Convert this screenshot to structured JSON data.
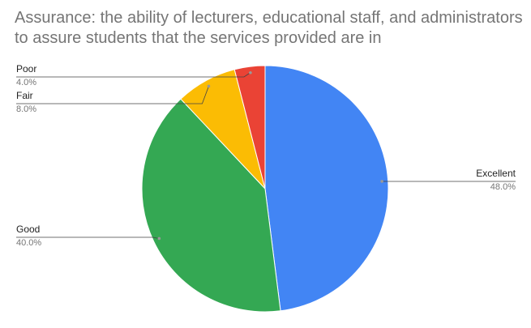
{
  "chart_data": {
    "type": "pie",
    "title": "Assurance: the ability of lecturers, educational staff, and administrators to assure students that the services provided are in",
    "slices": [
      {
        "label": "Excellent",
        "value": 48.0,
        "percent_label": "48.0%",
        "color": "#4285f4"
      },
      {
        "label": "Good",
        "value": 40.0,
        "percent_label": "40.0%",
        "color": "#34a853"
      },
      {
        "label": "Fair",
        "value": 8.0,
        "percent_label": "8.0%",
        "color": "#fbbc04"
      },
      {
        "label": "Poor",
        "value": 4.0,
        "percent_label": "4.0%",
        "color": "#ea4335"
      }
    ],
    "legend": "none"
  }
}
